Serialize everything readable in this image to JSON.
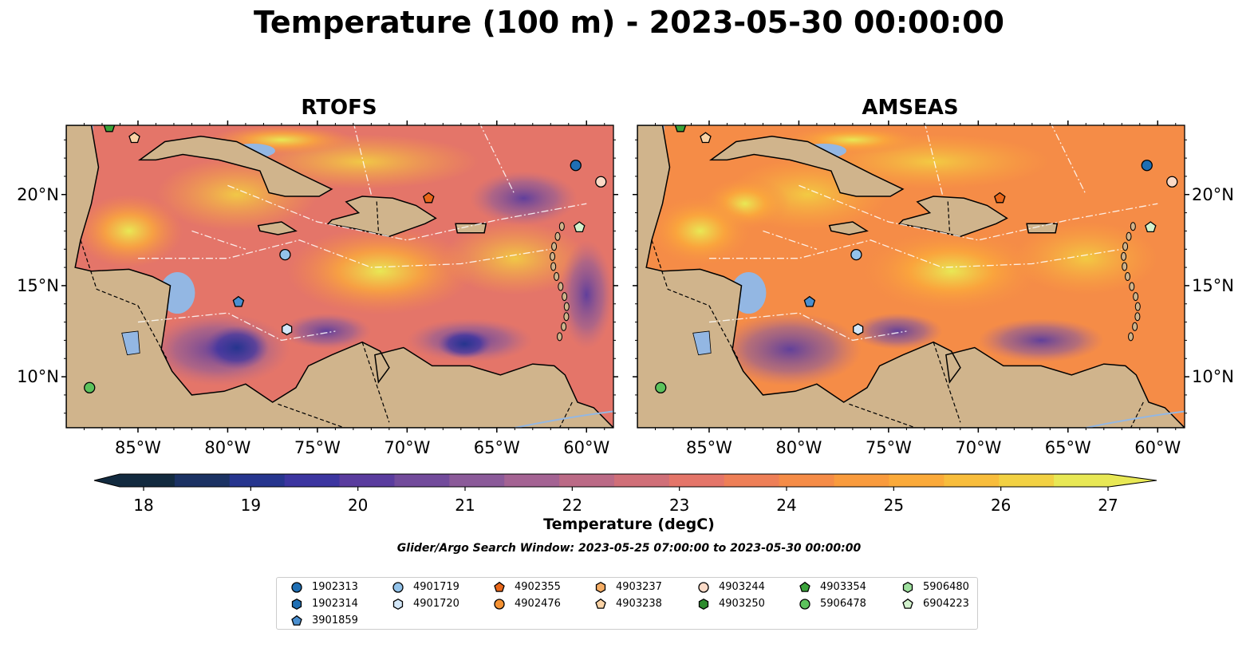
{
  "title": "Temperature (100 m) - 2023-05-30 00:00:00",
  "chart_data": {
    "type": "heatmap",
    "panels": [
      {
        "title": "RTOFS",
        "xlabels": [
          "85°W",
          "80°W",
          "75°W",
          "70°W",
          "65°W",
          "60°W"
        ],
        "ylabels": [
          "20°N",
          "15°N",
          "10°N"
        ],
        "land_mask_right": false
      },
      {
        "title": "AMSEAS",
        "xlabels": [
          "85°W",
          "80°W",
          "75°W",
          "70°W",
          "65°W",
          "60°W"
        ],
        "ylabels": [
          "20°N",
          "15°N",
          "10°N"
        ]
      }
    ],
    "x_range_lon": [
      -89,
      -58.5
    ],
    "y_range_lat": [
      7.2,
      23.8
    ],
    "colorbar": {
      "label": "Temperature (degC)",
      "ticks": [
        "18",
        "19",
        "20",
        "21",
        "22",
        "23",
        "24",
        "25",
        "26",
        "27"
      ],
      "min": 18,
      "max": 27,
      "extend": "both",
      "colors": [
        "#122a3f",
        "#1b3263",
        "#26358e",
        "#3c35a0",
        "#5a3c9e",
        "#724b9b",
        "#8b5a99",
        "#a46393",
        "#bb6a86",
        "#d06f78",
        "#e47569",
        "#ee7f57",
        "#f58c47",
        "#f99b3d",
        "#fbaa3a",
        "#f8bd3c",
        "#f2d143",
        "#e8e855"
      ]
    },
    "search_window": "Glider/Argo Search Window: 2023-05-25 07:00:00 to 2023-05-30 00:00:00",
    "platforms": [
      {
        "id": "1902313",
        "marker": "circle",
        "color": "#1f6fb4",
        "lon": -60.6,
        "lat": 21.6
      },
      {
        "id": "1902314",
        "marker": "hexagon",
        "color": "#1f6fb4"
      },
      {
        "id": "3901859",
        "marker": "pentagon",
        "color": "#4a8fd0",
        "lon": -79.4,
        "lat": 14.1
      },
      {
        "id": "4901719",
        "marker": "circle",
        "color": "#93c3ea",
        "lon": -76.8,
        "lat": 16.7
      },
      {
        "id": "4901720",
        "marker": "hexagon",
        "color": "#d3e7f8",
        "lon": -76.7,
        "lat": 12.6
      },
      {
        "id": "4902355",
        "marker": "pentagon",
        "color": "#e9671a",
        "lon": -68.8,
        "lat": 19.8
      },
      {
        "id": "4902476",
        "marker": "circle",
        "color": "#f59233"
      },
      {
        "id": "4903237",
        "marker": "hexagon",
        "color": "#f5ad64"
      },
      {
        "id": "4903238",
        "marker": "pentagon",
        "color": "#fbd3a6",
        "lon": -85.2,
        "lat": 23.1
      },
      {
        "id": "4903244",
        "marker": "circle",
        "color": "#fbdac7",
        "lon": -59.2,
        "lat": 20.7
      },
      {
        "id": "4903250",
        "marker": "hexagon",
        "color": "#2e8b2e"
      },
      {
        "id": "4903354",
        "marker": "pentagon",
        "color": "#3aa33a",
        "lon": -86.6,
        "lat": 23.7
      },
      {
        "id": "5906478",
        "marker": "circle",
        "color": "#5cc25c",
        "lon": -87.7,
        "lat": 9.4
      },
      {
        "id": "5906480",
        "marker": "hexagon",
        "color": "#9ee09e"
      },
      {
        "id": "6904223",
        "marker": "pentagon",
        "color": "#d2f2cd",
        "lon": -60.4,
        "lat": 18.2
      }
    ]
  }
}
